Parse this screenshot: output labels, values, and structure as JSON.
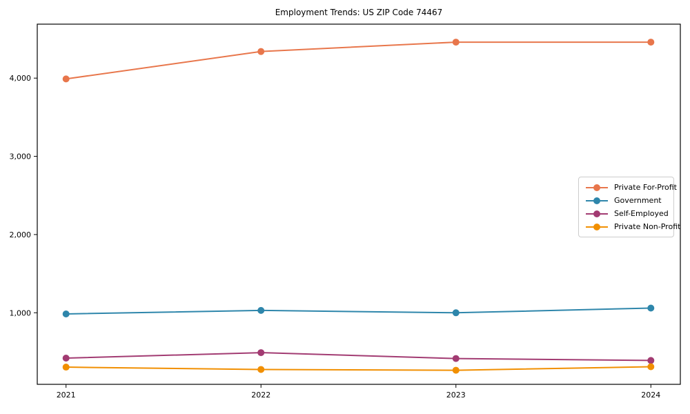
{
  "chart_data": {
    "type": "line",
    "title": "Employment Trends: US ZIP Code 74467",
    "x_tick_labels": [
      "2021",
      "2022",
      "2023",
      "2024"
    ],
    "y_ticks": [
      1000,
      2000,
      3000,
      4000
    ],
    "y_tick_labels": [
      "1,000",
      "2,000",
      "3,000",
      "4,000"
    ],
    "ylim": [
      85,
      4690
    ],
    "grid": false,
    "legend_position": "center-right",
    "marker": "circle",
    "series": [
      {
        "name": "Private For-Profit",
        "color": "#E8764B",
        "values": [
          3990,
          4340,
          4460,
          4460
        ]
      },
      {
        "name": "Government",
        "color": "#2E86AB",
        "values": [
          985,
          1030,
          1000,
          1060
        ]
      },
      {
        "name": "Self-Employed",
        "color": "#A23B72",
        "values": [
          420,
          490,
          415,
          390
        ]
      },
      {
        "name": "Private Non-Profit",
        "color": "#F18F01",
        "values": [
          305,
          275,
          265,
          310
        ]
      }
    ]
  }
}
